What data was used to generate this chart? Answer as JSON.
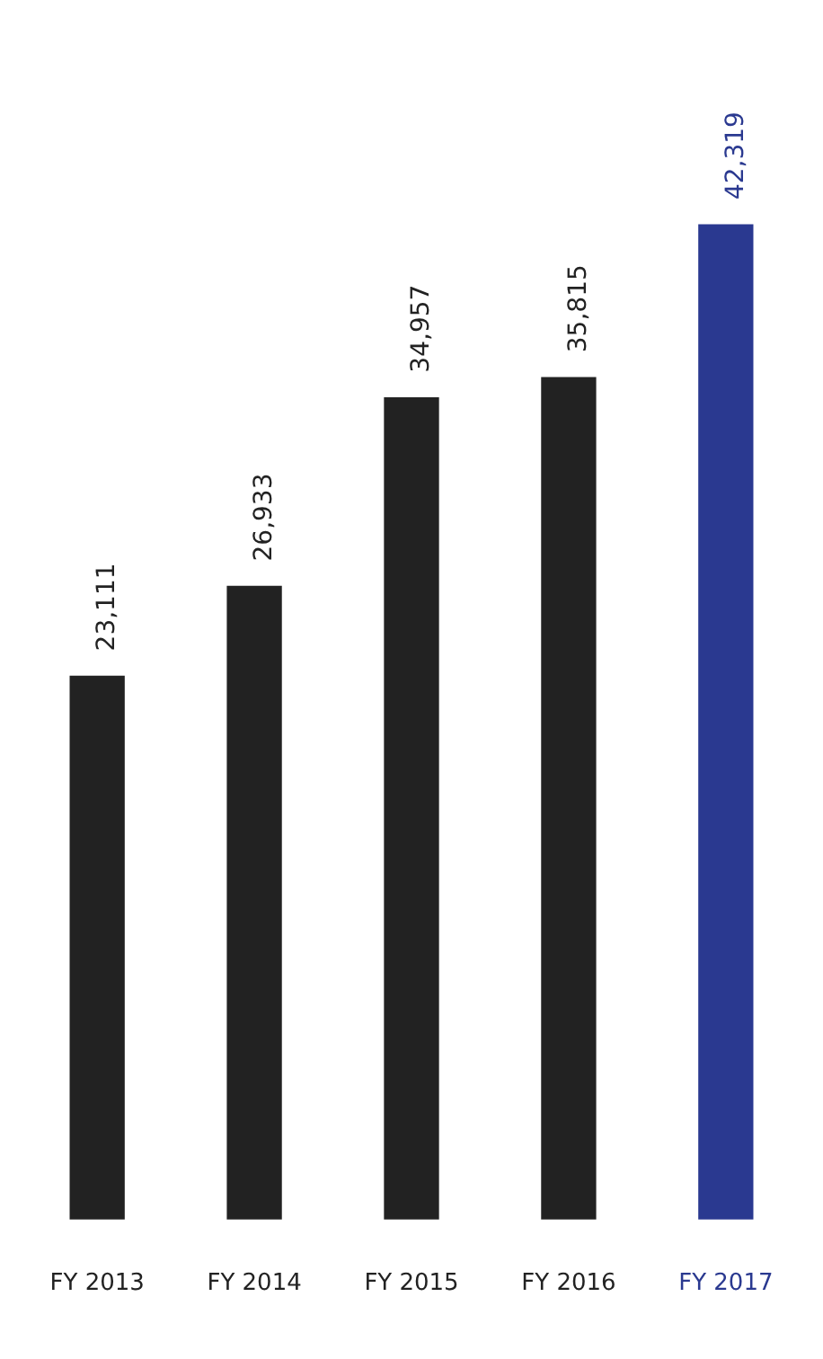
{
  "chart_data": {
    "type": "bar",
    "categories": [
      "FY 2013",
      "FY 2014",
      "FY 2015",
      "FY 2016",
      "FY 2017"
    ],
    "values": [
      23111,
      26933,
      34957,
      35815,
      42319
    ],
    "value_labels": [
      "23,111",
      "26,933",
      "34,957",
      "35,815",
      "42,319"
    ],
    "colors": [
      "#222222",
      "#222222",
      "#222222",
      "#222222",
      "#2a3990"
    ],
    "grid": false,
    "legend": false
  }
}
